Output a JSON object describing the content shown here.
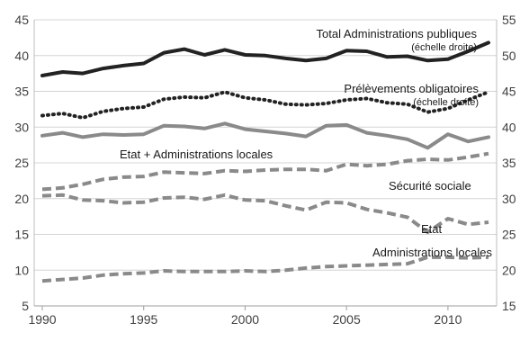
{
  "chart_data": {
    "type": "line",
    "x": [
      1990,
      1991,
      1992,
      1993,
      1994,
      1995,
      1996,
      1997,
      1998,
      1999,
      2000,
      2001,
      2002,
      2003,
      2004,
      2005,
      2006,
      2007,
      2008,
      2009,
      2010,
      2011,
      2012
    ],
    "xticks": [
      1990,
      1995,
      2000,
      2005,
      2010
    ],
    "xlim": [
      1989.6,
      2012.4
    ],
    "ylim_left": [
      5,
      45
    ],
    "yticks_left": [
      5,
      10,
      15,
      20,
      25,
      30,
      35,
      40,
      45
    ],
    "ylim_right": [
      15,
      55
    ],
    "yticks_right": [
      15,
      20,
      25,
      30,
      35,
      40,
      45,
      50,
      55
    ],
    "grid": "horizontal",
    "series": [
      {
        "name": "Total Administrations publiques",
        "name_line2": "(échelle droite)",
        "axis": "right",
        "style": "solid-thick",
        "color": "#222222",
        "values": [
          47.2,
          47.7,
          47.5,
          48.2,
          48.6,
          48.9,
          50.4,
          50.9,
          50.1,
          50.8,
          50.1,
          50.0,
          49.6,
          49.3,
          49.6,
          50.7,
          50.6,
          49.8,
          49.9,
          49.3,
          49.5,
          50.6,
          51.8
        ]
      },
      {
        "name": "Prélèvements obligatoires",
        "name_line2": "(échelle droite)",
        "axis": "right",
        "style": "dotted",
        "color": "#222222",
        "values": [
          41.6,
          41.9,
          41.3,
          42.2,
          42.6,
          42.8,
          43.9,
          44.2,
          44.1,
          44.9,
          44.1,
          43.8,
          43.2,
          43.1,
          43.3,
          43.8,
          44.0,
          43.4,
          43.2,
          42.1,
          42.6,
          43.8,
          44.9
        ]
      },
      {
        "name": "Etat + Administrations locales",
        "axis": "left",
        "style": "solid-grey",
        "color": "#8a8a8a",
        "values": [
          28.8,
          29.2,
          28.6,
          29.0,
          28.9,
          29.0,
          30.2,
          30.1,
          29.8,
          30.5,
          29.7,
          29.4,
          29.1,
          28.7,
          30.2,
          30.3,
          29.2,
          28.8,
          28.3,
          27.1,
          29.0,
          28.0,
          28.6
        ]
      },
      {
        "name": "Sécurité sociale",
        "axis": "left",
        "style": "dashed-grey",
        "color": "#8a8a8a",
        "values": [
          21.3,
          21.5,
          22.0,
          22.7,
          23.0,
          23.1,
          23.7,
          23.6,
          23.5,
          23.9,
          23.8,
          24.0,
          24.1,
          24.1,
          23.9,
          24.8,
          24.6,
          24.8,
          25.3,
          25.5,
          25.4,
          25.8,
          26.3
        ]
      },
      {
        "name": "Etat",
        "axis": "left",
        "style": "dashed-grey",
        "color": "#8a8a8a",
        "values": [
          20.4,
          20.5,
          19.8,
          19.7,
          19.4,
          19.5,
          20.1,
          20.2,
          19.9,
          20.5,
          19.8,
          19.7,
          19.0,
          18.4,
          19.5,
          19.4,
          18.5,
          18.0,
          17.4,
          15.3,
          17.2,
          16.4,
          16.7
        ]
      },
      {
        "name": "Administrations locales",
        "axis": "left",
        "style": "dashed-grey",
        "color": "#8a8a8a",
        "values": [
          8.5,
          8.7,
          8.9,
          9.3,
          9.5,
          9.6,
          9.9,
          9.8,
          9.8,
          9.8,
          9.9,
          9.8,
          10.0,
          10.3,
          10.5,
          10.6,
          10.7,
          10.8,
          10.9,
          11.8,
          11.8,
          11.7,
          11.8
        ]
      }
    ]
  }
}
